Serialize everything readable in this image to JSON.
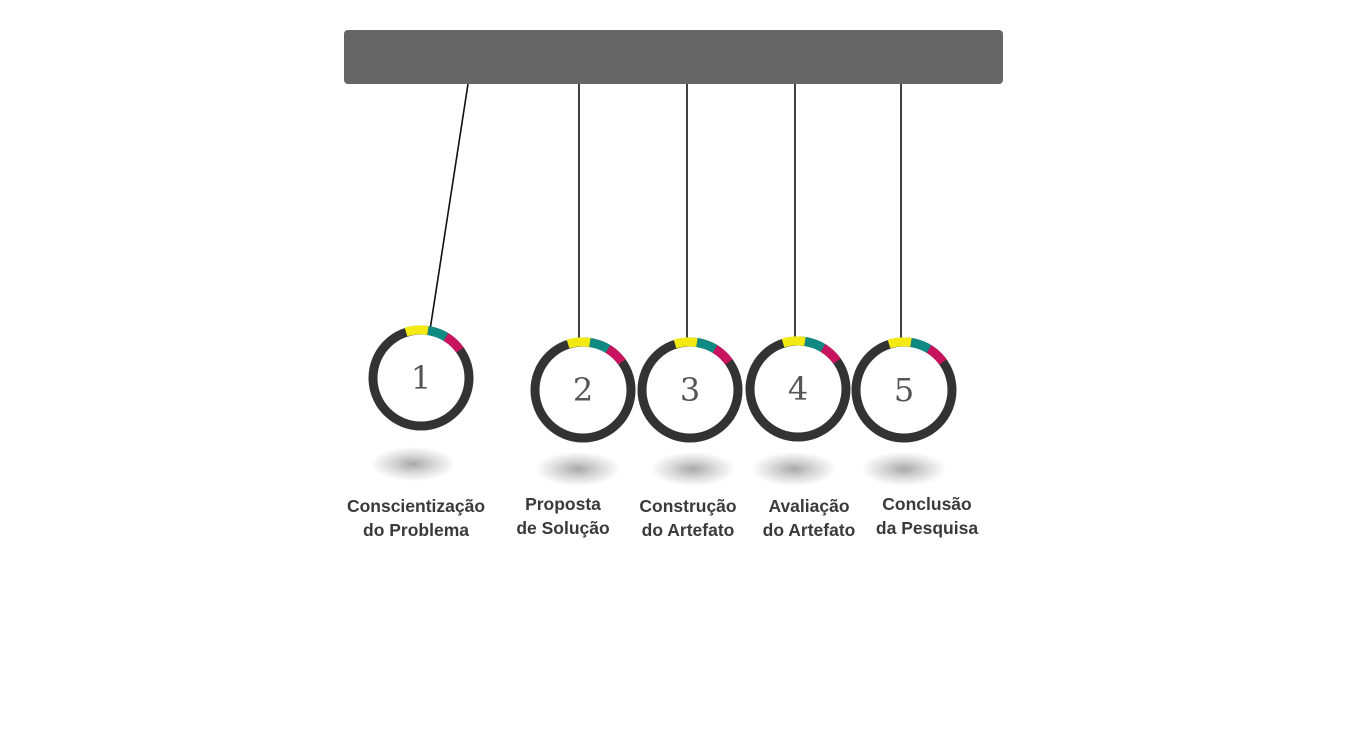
{
  "colors": {
    "bar": "#666666",
    "ring": "#333333",
    "accent_yellow": "#f2ea12",
    "accent_teal": "#0e8a82",
    "accent_magenta": "#c8135f",
    "label_text": "#3a3a3a",
    "number_text": "#555555"
  },
  "steps": [
    {
      "number": "1",
      "label_line1": "Conscientização",
      "label_line2": "do Problema"
    },
    {
      "number": "2",
      "label_line1": "Proposta",
      "label_line2": "de Solução"
    },
    {
      "number": "3",
      "label_line1": "Construção",
      "label_line2": "do Artefato"
    },
    {
      "number": "4",
      "label_line1": "Avaliação",
      "label_line2": "do Artefato"
    },
    {
      "number": "5",
      "label_line1": "Conclusão",
      "label_line2": "da Pesquisa"
    }
  ]
}
